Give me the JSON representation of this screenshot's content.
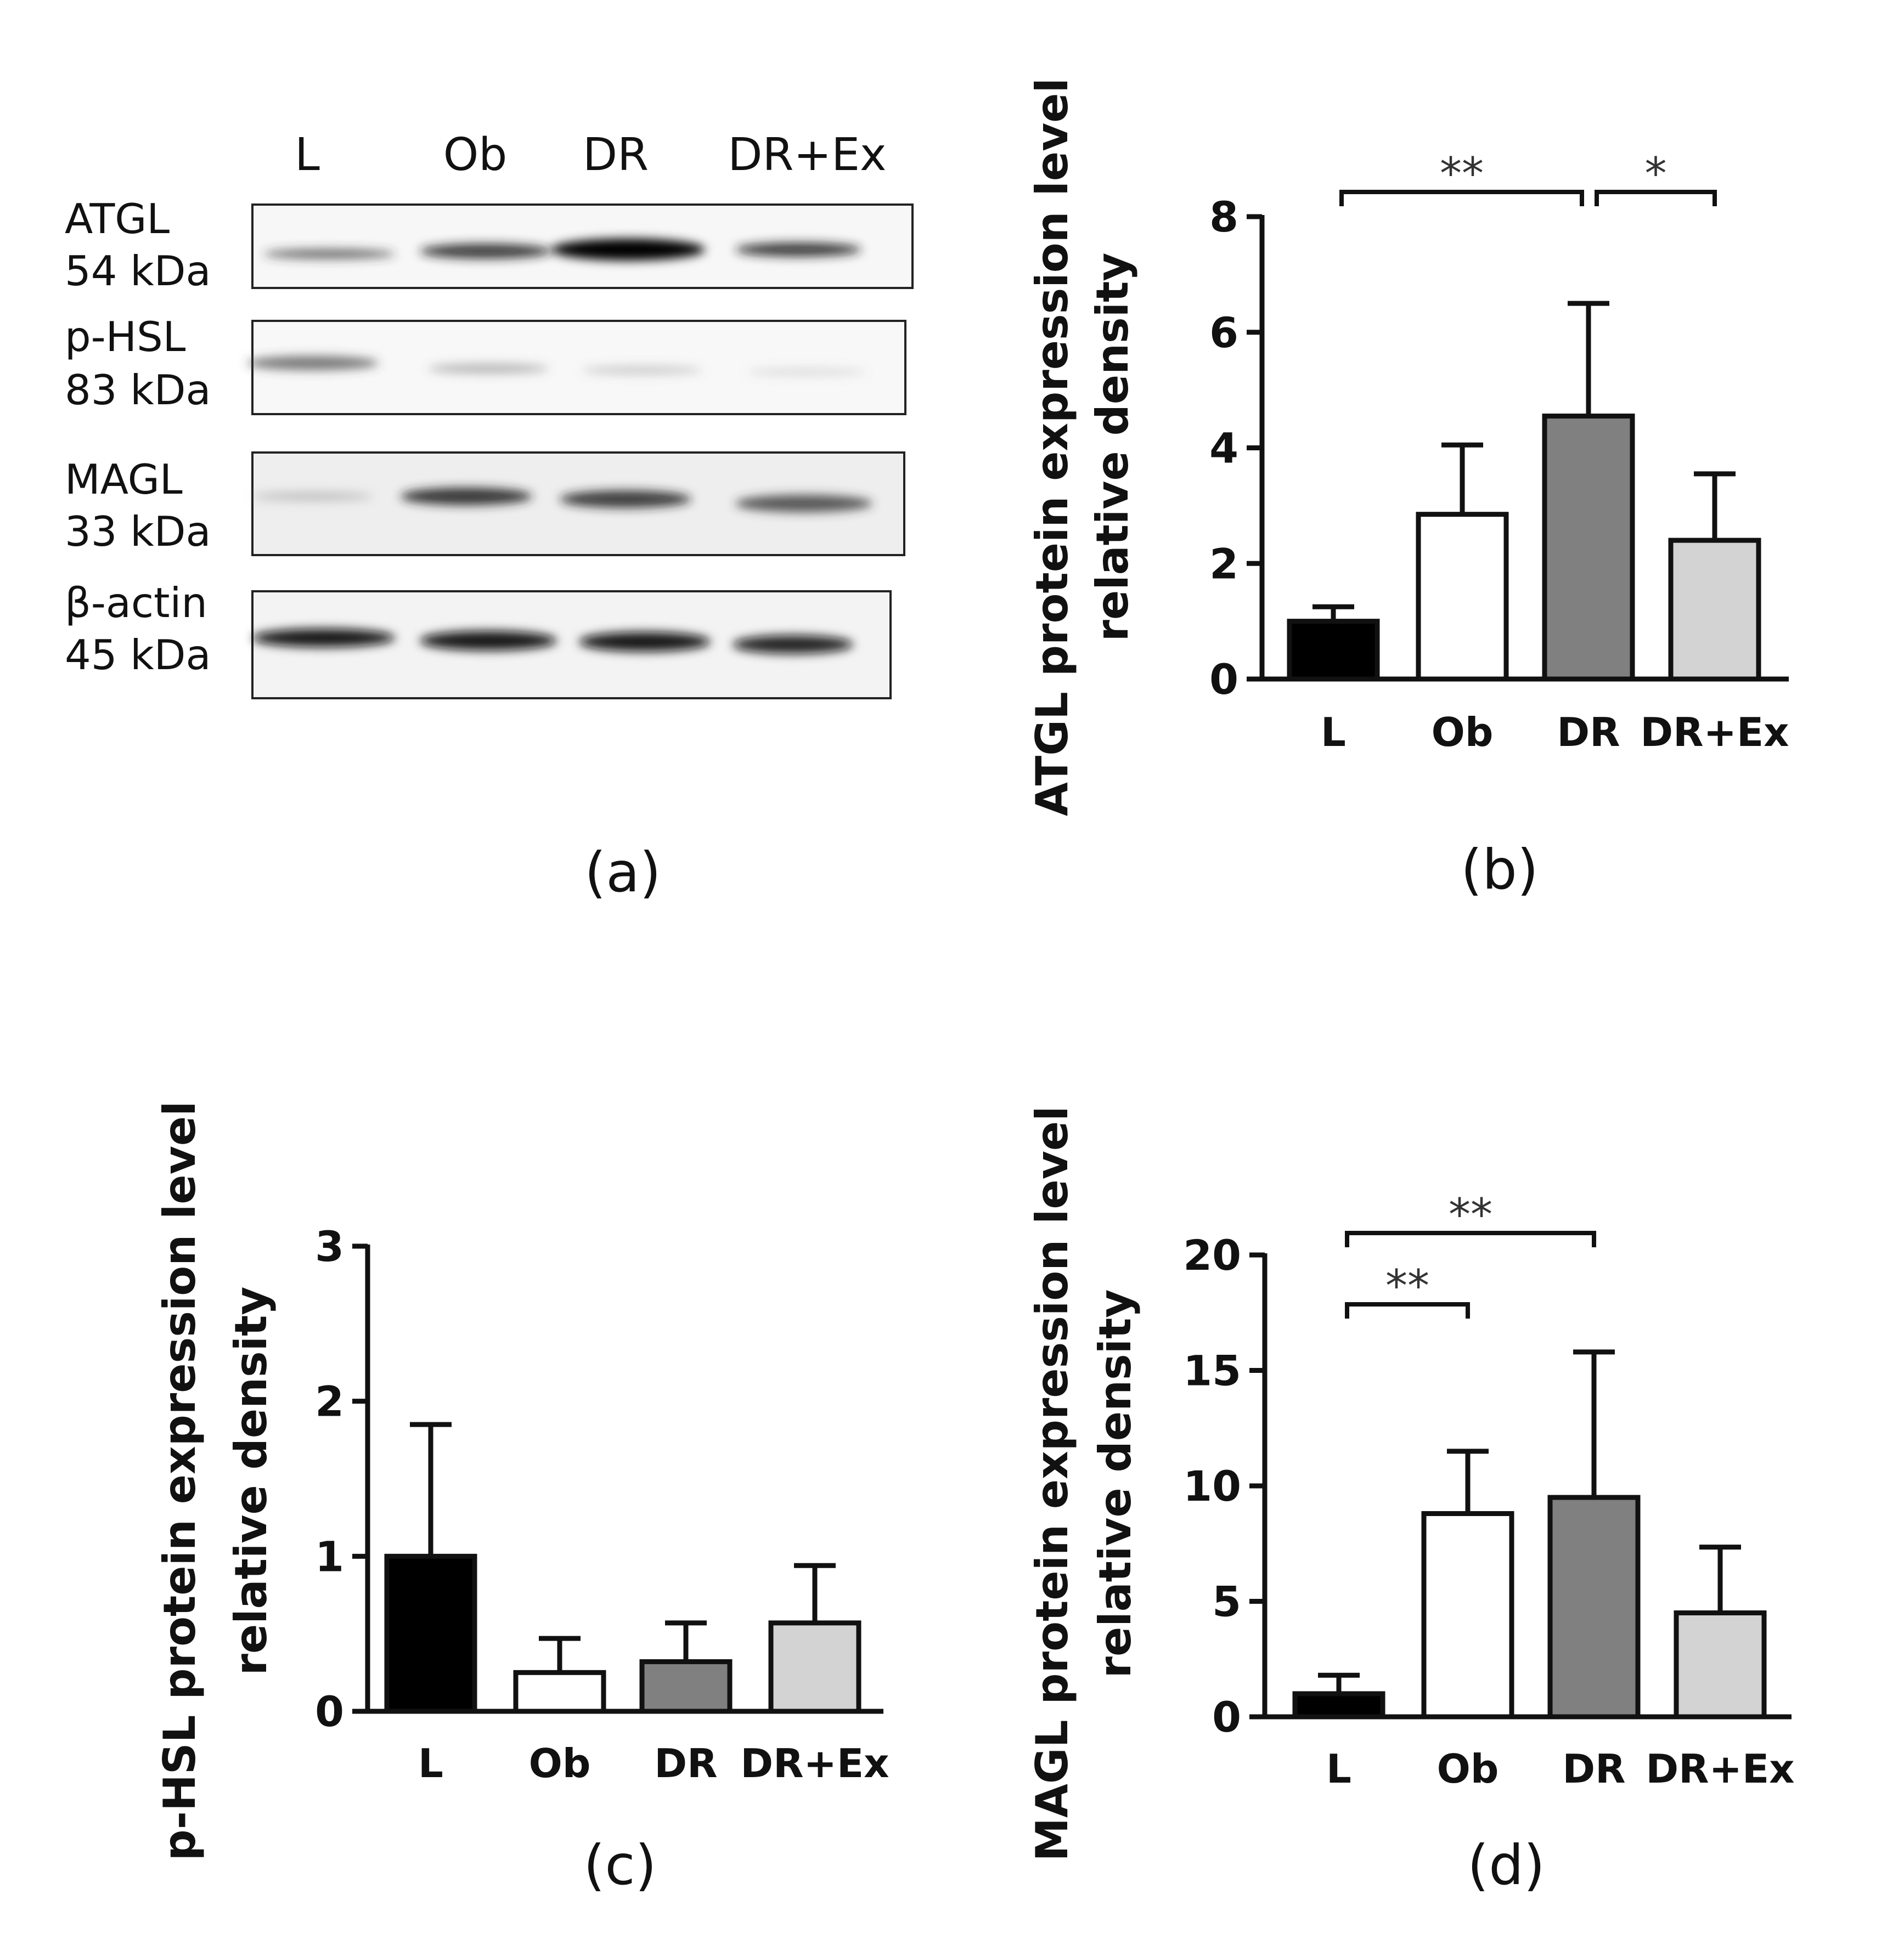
{
  "panels": {
    "a": {
      "label": "(a)"
    },
    "b": {
      "label": "(b)"
    },
    "c": {
      "label": "(c)"
    },
    "d": {
      "label": "(d)"
    }
  },
  "blot": {
    "lanes": [
      "L",
      "Ob",
      "DR",
      "DR+Ex"
    ],
    "rows": [
      {
        "protein": "ATGL",
        "weight": "54 kDa"
      },
      {
        "protein": "p-HSL",
        "weight": "83 kDa"
      },
      {
        "protein": "MAGL",
        "weight": "33 kDa"
      },
      {
        "protein": "β-actin",
        "weight": "45 kDa"
      }
    ]
  },
  "colors": {
    "L": "#000000",
    "Ob": "#ffffff",
    "DR": "#808080",
    "DR+Ex": "#d3d3d3"
  },
  "chart_data": [
    {
      "type": "bar",
      "panel": "b",
      "title": "",
      "categories": [
        "L",
        "Ob",
        "DR",
        "DR+Ex"
      ],
      "values": [
        1.0,
        2.85,
        4.55,
        2.4
      ],
      "errors": [
        0.25,
        1.2,
        1.95,
        1.15
      ],
      "ylabel_line1": "ATGL protein expression level",
      "ylabel_line2": "relative density",
      "xlabel": "",
      "ylim": [
        0,
        8
      ],
      "yticks": [
        "0",
        "2",
        "4",
        "6",
        "8"
      ],
      "significance": [
        {
          "from": "L",
          "to": "DR",
          "label": "**"
        },
        {
          "from": "DR",
          "to": "DR+Ex",
          "label": "*"
        }
      ]
    },
    {
      "type": "bar",
      "panel": "c",
      "title": "",
      "categories": [
        "L",
        "Ob",
        "DR",
        "DR+Ex"
      ],
      "values": [
        1.0,
        0.25,
        0.32,
        0.57
      ],
      "errors": [
        0.85,
        0.22,
        0.25,
        0.37
      ],
      "ylabel_line1": "p-HSL protein expression level",
      "ylabel_line2": "relative density",
      "xlabel": "",
      "ylim": [
        0,
        3
      ],
      "yticks": [
        "0",
        "1",
        "2",
        "3"
      ],
      "significance": []
    },
    {
      "type": "bar",
      "panel": "d",
      "title": "",
      "categories": [
        "L",
        "Ob",
        "DR",
        "DR+Ex"
      ],
      "values": [
        1.0,
        8.8,
        9.5,
        4.5
      ],
      "errors": [
        0.8,
        2.7,
        6.3,
        2.85
      ],
      "ylabel_line1": "MAGL protein expression level",
      "ylabel_line2": "relative density",
      "xlabel": "",
      "ylim": [
        0,
        20
      ],
      "yticks": [
        "0",
        "5",
        "10",
        "15",
        "20"
      ],
      "significance": [
        {
          "from": "L",
          "to": "Ob",
          "label": "**"
        },
        {
          "from": "L",
          "to": "DR",
          "label": "**"
        }
      ]
    }
  ]
}
